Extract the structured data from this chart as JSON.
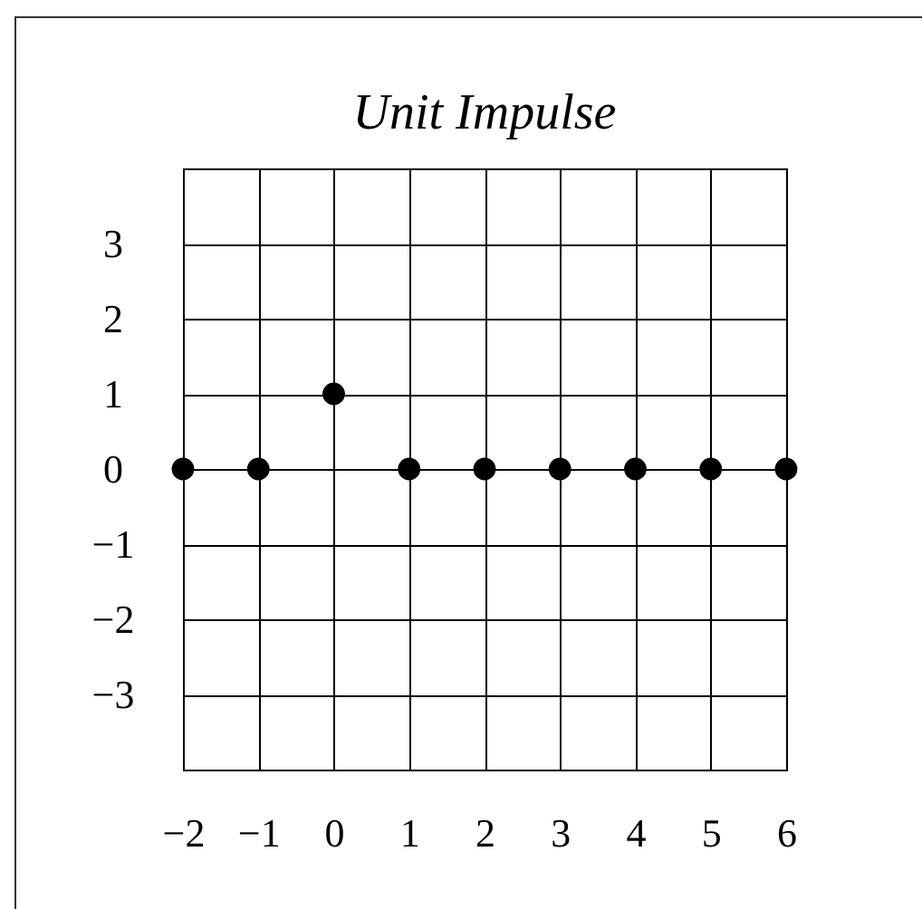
{
  "chart_data": {
    "type": "scatter",
    "title": "Unit Impulse",
    "x": [
      -2,
      -1,
      0,
      1,
      2,
      3,
      4,
      5,
      6
    ],
    "values": [
      0,
      0,
      1,
      0,
      0,
      0,
      0,
      0,
      0
    ],
    "color": "#000000",
    "xlim": [
      -2,
      6
    ],
    "ylim": [
      -4,
      4
    ],
    "xticks": [
      -2,
      -1,
      0,
      1,
      2,
      3,
      4,
      5,
      6
    ],
    "yticks": [
      -3,
      -2,
      -1,
      0,
      1,
      2,
      3
    ],
    "grid": true,
    "marker": "circle"
  }
}
